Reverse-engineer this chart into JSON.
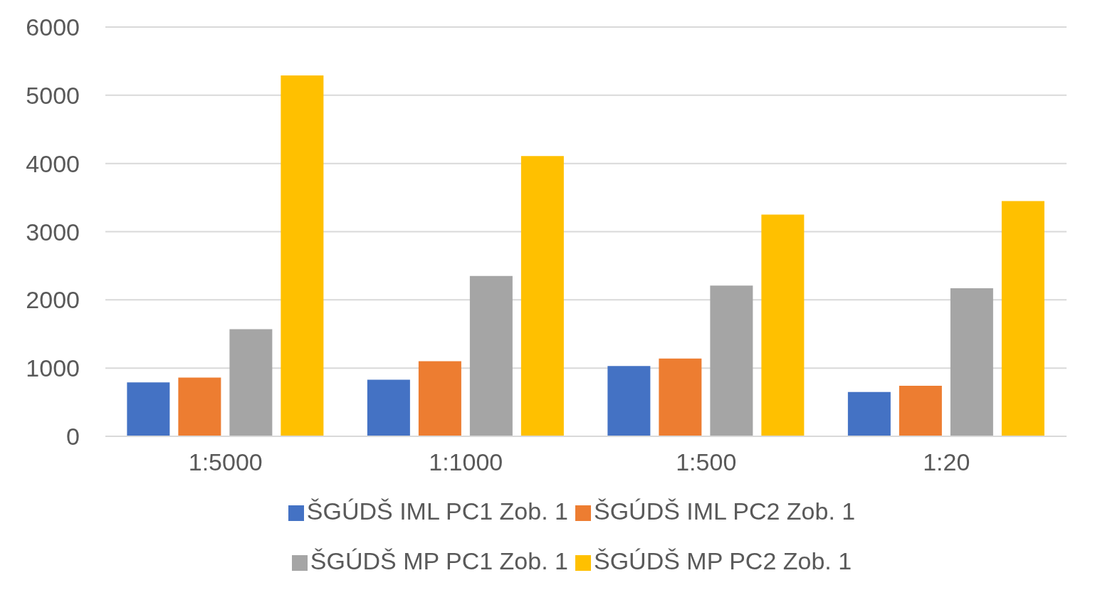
{
  "chart_data": {
    "type": "bar",
    "categories": [
      "1:5000",
      "1:1000",
      "1:500",
      "1:20"
    ],
    "series": [
      {
        "name": "ŠGÚDŠ IML PC1 Zob. 1",
        "color": "#4472c4",
        "values": [
          790,
          830,
          1030,
          650
        ]
      },
      {
        "name": "ŠGÚDŠ IML PC2 Zob. 1",
        "color": "#ed7d31",
        "values": [
          860,
          1100,
          1140,
          740
        ]
      },
      {
        "name": "ŠGÚDŠ MP PC1 Zob. 1",
        "color": "#a5a5a5",
        "values": [
          1570,
          2350,
          2210,
          2170
        ]
      },
      {
        "name": "ŠGÚDŠ MP PC2 Zob. 1",
        "color": "#ffc000",
        "values": [
          5290,
          4110,
          3250,
          3450
        ]
      }
    ],
    "ylim": [
      0,
      6000
    ],
    "yticks": [
      0,
      1000,
      2000,
      3000,
      4000,
      5000,
      6000
    ],
    "grid": "y",
    "legend": "bottom"
  }
}
